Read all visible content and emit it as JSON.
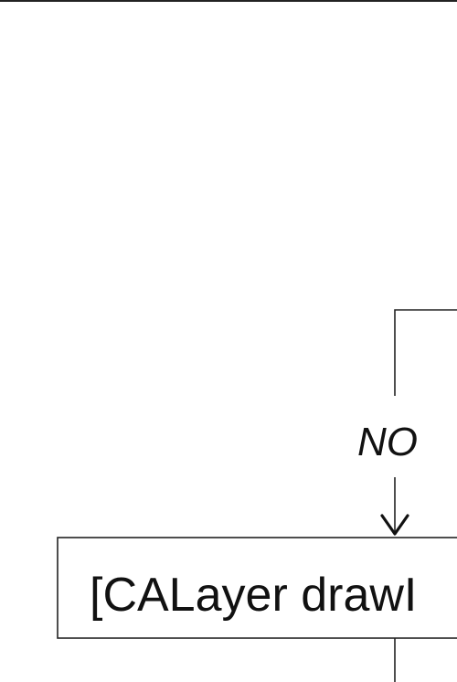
{
  "diagram": {
    "edge_label_no": "NO",
    "node_calayer_label": "[CALayer drawI"
  }
}
